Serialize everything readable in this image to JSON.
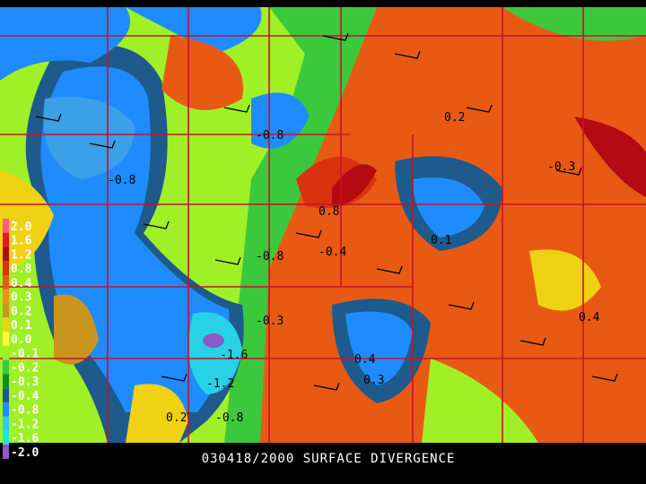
{
  "title": "030418/2000 SURFACE DIVERGENCE",
  "legend": [
    {
      "label": "2.0",
      "color": "#ff5a8c"
    },
    {
      "label": "1.6",
      "color": "#e8142d"
    },
    {
      "label": "1.2",
      "color": "#b40a14"
    },
    {
      "label": "0.8",
      "color": "#d8320e"
    },
    {
      "label": "0.4",
      "color": "#e85a14"
    },
    {
      "label": "0.3",
      "color": "#f08c1e"
    },
    {
      "label": "0.2",
      "color": "#c8961e"
    },
    {
      "label": "0.1",
      "color": "#f0d214"
    },
    {
      "label": "0.0",
      "color": "#ffff3c"
    },
    {
      "label": "-0.1",
      "color": "#a0f028"
    },
    {
      "label": "-0.2",
      "color": "#3cc83c"
    },
    {
      "label": "-0.3",
      "color": "#148c28"
    },
    {
      "label": "-0.4",
      "color": "#1e5a8c"
    },
    {
      "label": "-0.8",
      "color": "#1e8cff"
    },
    {
      "label": "-1.2",
      "color": "#28d2e6"
    },
    {
      "label": "-1.6",
      "color": "#1ee6dc"
    },
    {
      "label": "-2.0",
      "color": "#8c5ac8"
    }
  ],
  "map_labels": [
    "-0.8",
    "-0.8",
    "-0.8",
    "0.8",
    "-0.4",
    "-1.6",
    "-1.2",
    "-0.8",
    "0.2",
    "0.4",
    "0.3",
    "-0.3",
    "0.1",
    "0.4",
    "-0.3",
    "0.2"
  ]
}
